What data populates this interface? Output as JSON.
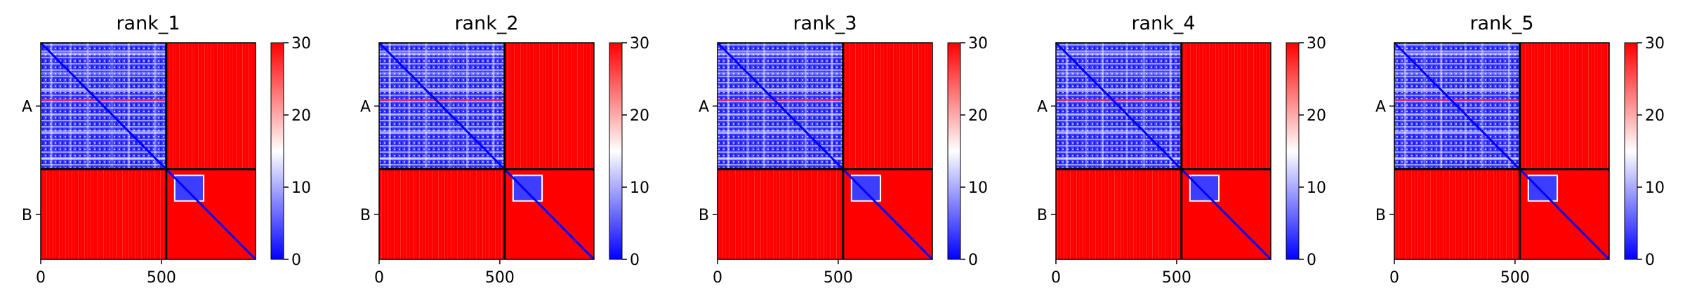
{
  "chart_data": {
    "type": "heatmap",
    "colormap": {
      "name": "bwr",
      "low": "#0000ff",
      "mid": "#ffffff",
      "high": "#ff0000"
    },
    "color_range": [
      0,
      30
    ],
    "colorbar_ticks": [
      "0",
      "10",
      "20",
      "30"
    ],
    "x_ticks": [
      "0",
      "500"
    ],
    "x_tick_values": [
      0,
      500
    ],
    "axis_max": 890,
    "chain_boundary": 520,
    "chain_labels": [
      "A",
      "B"
    ],
    "panels": [
      {
        "title": "rank_1"
      },
      {
        "title": "rank_2"
      },
      {
        "title": "rank_3"
      },
      {
        "title": "rank_4"
      },
      {
        "title": "rank_5"
      }
    ]
  }
}
